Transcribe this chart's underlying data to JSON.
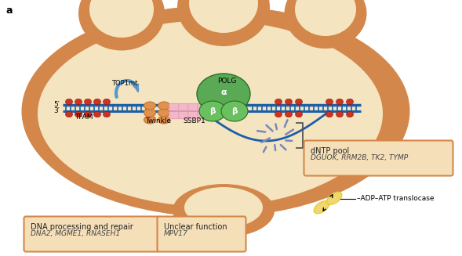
{
  "label_a": "a",
  "box1_title": "DNA processing and repair",
  "box1_genes": "DNA2, MGME1, RNASEH1",
  "box2_title": "Unclear function",
  "box2_genes": "MPV17",
  "box3_title": "dNTP pool",
  "box3_genes": "DGUOK, RRM2B, TK2, TYMP",
  "box_adp": "–ADP–ATP translocase",
  "label_ssbp1": "SSBP1",
  "label_twinkle": "Twinkle",
  "label_tfam": "TFAM",
  "label_top1mt": "TOP1mt",
  "label_polg": "POLG",
  "label_3prime": "3′",
  "label_5prime": "5′",
  "label_alpha": "α",
  "label_beta1": "β",
  "label_beta2": "β",
  "dna_blue": "#1a5fa8",
  "polg_green": "#5aaa55",
  "polg_green2": "#6abf60",
  "twinkle_orange": "#C8752A",
  "twinkle_orange2": "#E09050",
  "ssbp_pink": "#E898B0",
  "ssbp_pink2": "#F0B8C8",
  "tfam_red": "#CC3322",
  "helicase_yellow": "#E8C840",
  "helicase_yellow2": "#F0D870",
  "top1mt_blue": "#5599CC",
  "box_bg": "#F5DFB8",
  "box_border": "#D4874A",
  "mito_orange": "#D4874A",
  "mito_light": "#F5E4C0",
  "mito_inner": "#F0D8A8"
}
